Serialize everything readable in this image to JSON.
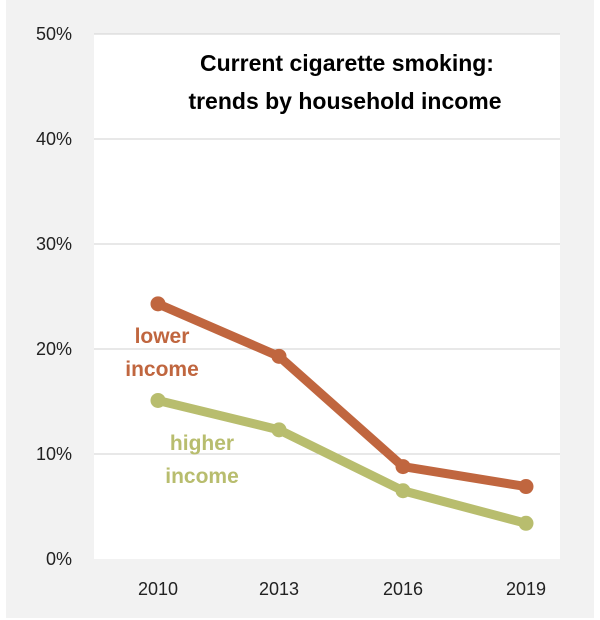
{
  "chart_data": {
    "type": "line",
    "title_lines": [
      "Current cigarette smoking:",
      "trends by household  income"
    ],
    "x": [
      "2010",
      "2013",
      "2016",
      "2019"
    ],
    "y_ticks": [
      "0%",
      "10%",
      "20%",
      "30%",
      "40%",
      "50%"
    ],
    "ylim": [
      0,
      50
    ],
    "grid": true,
    "series": [
      {
        "name": "lower income",
        "label_lines": [
          "lower",
          "income"
        ],
        "color": "#c0663f",
        "values": [
          24.3,
          19.3,
          8.8,
          6.9
        ]
      },
      {
        "name": "higher income",
        "label_lines": [
          "higher",
          "income"
        ],
        "color": "#b8bd6e",
        "values": [
          15.1,
          12.3,
          6.5,
          3.4
        ]
      }
    ]
  }
}
